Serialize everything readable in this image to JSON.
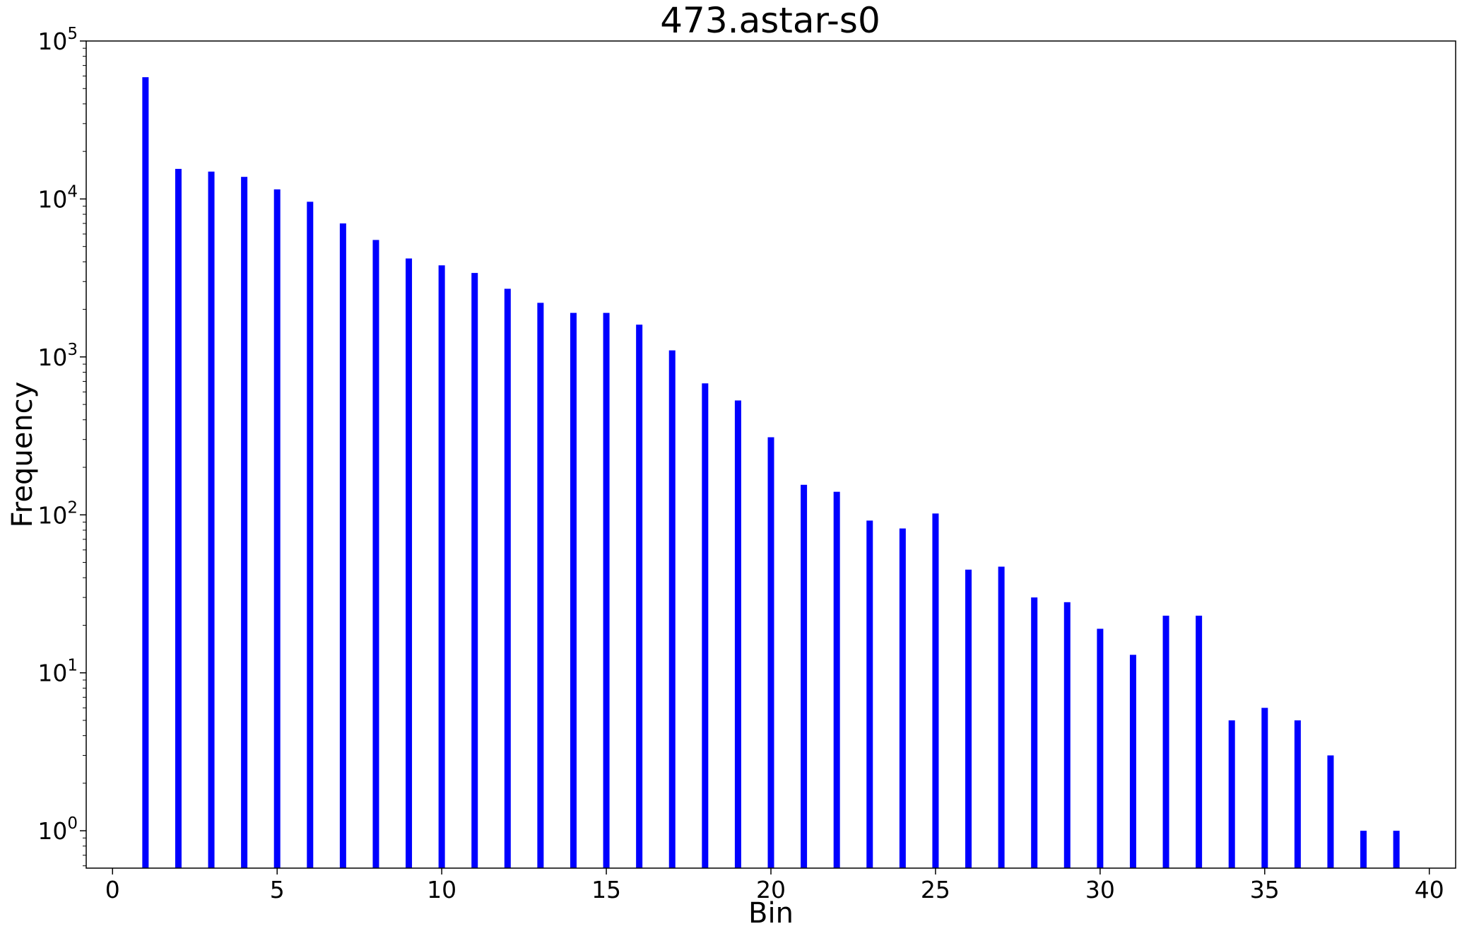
{
  "chart_data": {
    "type": "bar",
    "title": "473.astar-s0",
    "xlabel": "Bin",
    "ylabel": "Frequency",
    "xlim": [
      -0.8,
      40.8
    ],
    "ylim": [
      0.58,
      100000
    ],
    "yscale": "log",
    "grid": false,
    "bar_color": "#0000ff",
    "x_ticks": [
      0,
      5,
      10,
      15,
      20,
      25,
      30,
      35,
      40
    ],
    "y_ticks": [
      {
        "value": 1,
        "base": "10",
        "exp": "0"
      },
      {
        "value": 10,
        "base": "10",
        "exp": "1"
      },
      {
        "value": 100,
        "base": "10",
        "exp": "2"
      },
      {
        "value": 1000,
        "base": "10",
        "exp": "3"
      },
      {
        "value": 10000,
        "base": "10",
        "exp": "4"
      },
      {
        "value": 100000,
        "base": "10",
        "exp": "5"
      }
    ],
    "x": [
      1,
      2,
      3,
      4,
      5,
      6,
      7,
      8,
      9,
      10,
      11,
      12,
      13,
      14,
      15,
      16,
      17,
      18,
      19,
      20,
      21,
      22,
      23,
      24,
      25,
      26,
      27,
      28,
      29,
      30,
      31,
      32,
      33,
      34,
      35,
      36,
      37,
      38,
      39
    ],
    "values": [
      59000,
      15500,
      14900,
      13800,
      11500,
      9600,
      7000,
      5500,
      4200,
      3800,
      3400,
      2700,
      2200,
      1900,
      1900,
      1600,
      1100,
      680,
      530,
      310,
      155,
      140,
      92,
      82,
      102,
      45,
      47,
      30,
      28,
      19,
      13,
      23,
      23,
      5,
      6,
      5,
      3,
      1,
      1
    ]
  }
}
